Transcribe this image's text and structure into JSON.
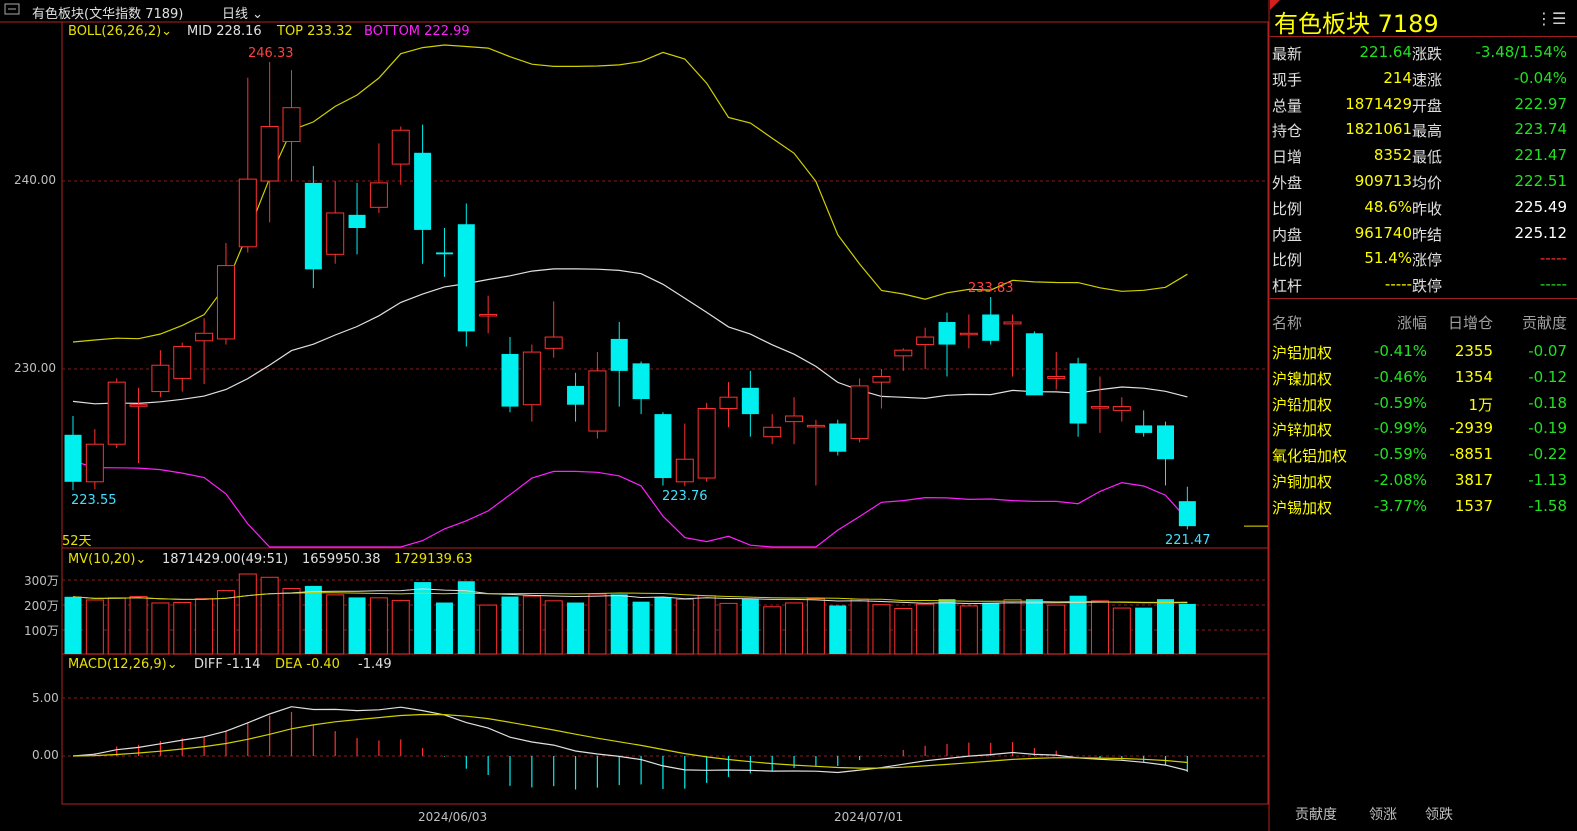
{
  "header": {
    "instrument": "有色板块(文华指数 7189)",
    "period": "日线"
  },
  "boll": {
    "label": "BOLL(26,26,2)",
    "mid": "MID 228.16",
    "top": "TOP 233.32",
    "bottom": "BOTTOM 222.99"
  },
  "price_axis": [
    "240.00",
    "230.00"
  ],
  "volume_axis": [
    "300万",
    "200万",
    "100万"
  ],
  "macd_axis": [
    "5.00",
    "0.00"
  ],
  "date_axis": [
    "2024/06/03",
    "2024/07/01"
  ],
  "annotations": {
    "hi1": "246.33",
    "lo1": "223.55",
    "lo2": "223.76",
    "hi2": "233.83",
    "lo3": "221.47",
    "days": "52天"
  },
  "mv": {
    "label": "MV(10,20)",
    "v1": "1871429.00(49:51)",
    "v2": "1659950.38",
    "v3": "1729139.63"
  },
  "macd": {
    "label": "MACD(12,26,9)",
    "diff": "DIFF -1.14",
    "dea": "DEA -0.40",
    "val": "-1.49"
  },
  "quote": {
    "title": "有色板块  7189",
    "rows": [
      {
        "l1": "最新",
        "v1": "221.64",
        "l2": "涨跌",
        "v2": "-3.48/1.54%"
      },
      {
        "l1": "现手",
        "v1": "214",
        "l2": "速涨",
        "v2": "-0.04%"
      },
      {
        "l1": "总量",
        "v1": "1871429",
        "l2": "开盘",
        "v2": "222.97"
      },
      {
        "l1": "持仓",
        "v1": "1821061",
        "l2": "最高",
        "v2": "223.74"
      },
      {
        "l1": "日增",
        "v1": "8352",
        "l2": "最低",
        "v2": "221.47"
      },
      {
        "l1": "外盘",
        "v1": "909713",
        "l2": "均价",
        "v2": "222.51"
      },
      {
        "l1": "比例",
        "v1": "48.6%",
        "l2": "昨收",
        "v2": "225.49"
      },
      {
        "l1": "内盘",
        "v1": "961740",
        "l2": "昨结",
        "v2": "225.12"
      },
      {
        "l1": "比例",
        "v1": "51.4%",
        "l2": "涨停",
        "v2": "-----"
      },
      {
        "l1": "杠杆",
        "v1": "-----",
        "l2": "跌停",
        "v2": "-----"
      }
    ]
  },
  "components": {
    "headers": [
      "名称",
      "涨幅",
      "日增仓",
      "贡献度"
    ],
    "rows": [
      {
        "name": "沪铝加权",
        "chg": "-0.41%",
        "inc": "2355",
        "con": "-0.07"
      },
      {
        "name": "沪镍加权",
        "chg": "-0.46%",
        "inc": "1354",
        "con": "-0.12"
      },
      {
        "name": "沪铅加权",
        "chg": "-0.59%",
        "inc": "1万",
        "con": "-0.18"
      },
      {
        "name": "沪锌加权",
        "chg": "-0.99%",
        "inc": "-2939",
        "con": "-0.19"
      },
      {
        "name": "氧化铝加权",
        "chg": "-0.59%",
        "inc": "-8851",
        "con": "-0.22"
      },
      {
        "name": "沪铜加权",
        "chg": "-2.08%",
        "inc": "3817",
        "con": "-1.13"
      },
      {
        "name": "沪锡加权",
        "chg": "-3.77%",
        "inc": "1537",
        "con": "-1.58"
      }
    ]
  },
  "tabs": [
    "贡献度",
    "领涨",
    "领跌"
  ],
  "chart_data": {
    "type": "candlestick",
    "candles": [
      {
        "o": 226.5,
        "h": 227.5,
        "l": 223.55,
        "c": 224.0
      },
      {
        "o": 224.0,
        "h": 226.8,
        "l": 223.6,
        "c": 226.0
      },
      {
        "o": 226.0,
        "h": 229.5,
        "l": 225.8,
        "c": 229.3
      },
      {
        "o": 228.1,
        "h": 229.0,
        "l": 225.0,
        "c": 228.1
      },
      {
        "o": 228.8,
        "h": 231.0,
        "l": 228.5,
        "c": 230.2
      },
      {
        "o": 229.5,
        "h": 231.4,
        "l": 228.8,
        "c": 231.2
      },
      {
        "o": 231.5,
        "h": 232.7,
        "l": 229.2,
        "c": 231.9
      },
      {
        "o": 231.6,
        "h": 236.7,
        "l": 231.3,
        "c": 235.5
      },
      {
        "o": 236.5,
        "h": 245.5,
        "l": 236.2,
        "c": 240.1
      },
      {
        "o": 240.0,
        "h": 246.33,
        "l": 237.8,
        "c": 242.9
      },
      {
        "o": 242.1,
        "h": 245.9,
        "l": 240.0,
        "c": 243.9
      },
      {
        "o": 239.9,
        "h": 240.8,
        "l": 234.3,
        "c": 235.3
      },
      {
        "o": 236.1,
        "h": 240.0,
        "l": 235.6,
        "c": 238.3
      },
      {
        "o": 238.2,
        "h": 239.9,
        "l": 236.1,
        "c": 237.5
      },
      {
        "o": 238.6,
        "h": 242.0,
        "l": 238.3,
        "c": 239.9
      },
      {
        "o": 240.9,
        "h": 242.9,
        "l": 239.8,
        "c": 242.7
      },
      {
        "o": 241.5,
        "h": 243.0,
        "l": 235.6,
        "c": 237.4
      },
      {
        "o": 236.2,
        "h": 237.5,
        "l": 234.9,
        "c": 236.1
      },
      {
        "o": 237.7,
        "h": 238.8,
        "l": 231.2,
        "c": 232.0
      },
      {
        "o": 232.9,
        "h": 233.9,
        "l": 231.9,
        "c": 232.9
      },
      {
        "o": 230.8,
        "h": 231.7,
        "l": 227.7,
        "c": 228.0
      },
      {
        "o": 228.1,
        "h": 231.3,
        "l": 227.2,
        "c": 230.9
      },
      {
        "o": 231.1,
        "h": 233.6,
        "l": 230.6,
        "c": 231.7
      },
      {
        "o": 229.1,
        "h": 229.8,
        "l": 227.2,
        "c": 228.1
      },
      {
        "o": 226.7,
        "h": 230.9,
        "l": 226.3,
        "c": 229.9
      },
      {
        "o": 231.6,
        "h": 232.5,
        "l": 228.0,
        "c": 229.9
      },
      {
        "o": 230.3,
        "h": 230.4,
        "l": 227.6,
        "c": 228.4
      },
      {
        "o": 227.6,
        "h": 227.7,
        "l": 223.8,
        "c": 224.2
      },
      {
        "o": 224.0,
        "h": 227.1,
        "l": 223.76,
        "c": 225.2
      },
      {
        "o": 224.2,
        "h": 228.2,
        "l": 224.0,
        "c": 227.9
      },
      {
        "o": 227.9,
        "h": 229.3,
        "l": 226.9,
        "c": 228.5
      },
      {
        "o": 229.0,
        "h": 229.9,
        "l": 226.4,
        "c": 227.6
      },
      {
        "o": 226.4,
        "h": 227.6,
        "l": 226.0,
        "c": 226.9
      },
      {
        "o": 227.2,
        "h": 228.5,
        "l": 226.0,
        "c": 227.5
      },
      {
        "o": 227.0,
        "h": 227.3,
        "l": 223.8,
        "c": 227.0
      },
      {
        "o": 227.1,
        "h": 227.3,
        "l": 225.4,
        "c": 225.6
      },
      {
        "o": 226.3,
        "h": 229.5,
        "l": 226.1,
        "c": 229.1
      },
      {
        "o": 229.3,
        "h": 230.0,
        "l": 227.9,
        "c": 229.6
      },
      {
        "o": 230.7,
        "h": 231.1,
        "l": 229.9,
        "c": 231.0
      },
      {
        "o": 231.3,
        "h": 232.2,
        "l": 230.0,
        "c": 231.7
      },
      {
        "o": 232.5,
        "h": 233.0,
        "l": 229.6,
        "c": 231.3
      },
      {
        "o": 231.9,
        "h": 232.9,
        "l": 231.1,
        "c": 231.9
      },
      {
        "o": 232.9,
        "h": 233.83,
        "l": 231.3,
        "c": 231.5
      },
      {
        "o": 232.4,
        "h": 232.9,
        "l": 229.6,
        "c": 232.5
      },
      {
        "o": 231.9,
        "h": 232.0,
        "l": 228.6,
        "c": 228.6
      },
      {
        "o": 229.5,
        "h": 230.9,
        "l": 228.9,
        "c": 229.6
      },
      {
        "o": 230.3,
        "h": 230.6,
        "l": 226.4,
        "c": 227.1
      },
      {
        "o": 228.0,
        "h": 229.6,
        "l": 226.6,
        "c": 228.0
      },
      {
        "o": 227.8,
        "h": 228.5,
        "l": 227.2,
        "c": 228.0
      },
      {
        "o": 227.0,
        "h": 227.8,
        "l": 226.4,
        "c": 226.6
      },
      {
        "o": 227.0,
        "h": 227.2,
        "l": 223.8,
        "c": 225.2
      },
      {
        "o": 222.97,
        "h": 223.74,
        "l": 221.47,
        "c": 221.64
      }
    ]
  }
}
